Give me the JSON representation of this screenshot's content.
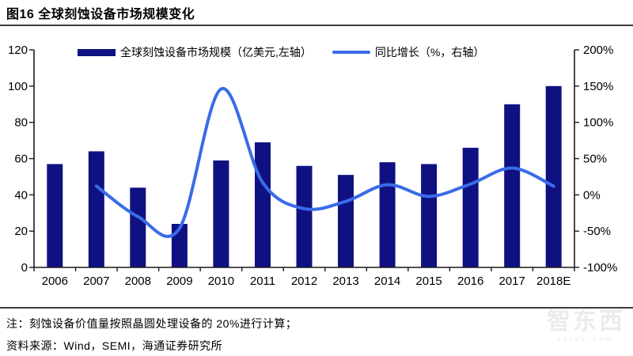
{
  "figure": {
    "title": "图16 全球刻蚀设备市场规模变化",
    "note": "注：刻蚀设备价值量按照晶圆处理设备的 20%进行计算；",
    "source": "资料来源：Wind，SEMI，海通证券研究所"
  },
  "watermark": {
    "text": "智东西",
    "sub": "zhidx.com"
  },
  "colors": {
    "bar": "#0f1182",
    "line": "#3a6be8",
    "axis": "#1a1a1a",
    "separator": "#3d3d3d",
    "watermark": "#ebebeb"
  },
  "chart_data": {
    "type": "bar+line",
    "title": "全球刻蚀设备市场规模变化",
    "categories": [
      "2006",
      "2007",
      "2008",
      "2009",
      "2010",
      "2011",
      "2012",
      "2013",
      "2014",
      "2015",
      "2016",
      "2017",
      "2018E"
    ],
    "series": [
      {
        "name": "全球刻蚀设备市场规模（亿美元,左轴）",
        "type": "bar",
        "axis": "left",
        "values": [
          57,
          64,
          44,
          24,
          59,
          69,
          56,
          51,
          58,
          57,
          66,
          90,
          100
        ]
      },
      {
        "name": "同比增长（%，右轴）",
        "type": "line",
        "axis": "right",
        "values": [
          null,
          12,
          -30,
          -46,
          146,
          17,
          -19,
          -9,
          14,
          -2,
          15,
          37,
          12
        ]
      }
    ],
    "left_axis": {
      "min": 0,
      "max": 120,
      "ticks": [
        0,
        20,
        40,
        60,
        80,
        100,
        120
      ],
      "suffix": ""
    },
    "right_axis": {
      "min": -100,
      "max": 200,
      "ticks": [
        -100,
        -50,
        0,
        50,
        100,
        150,
        200
      ],
      "suffix": "%"
    },
    "grid": false,
    "legend_position": "top"
  }
}
